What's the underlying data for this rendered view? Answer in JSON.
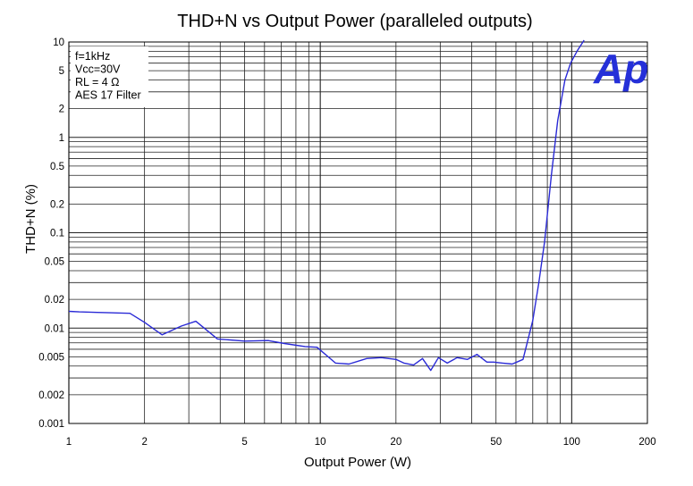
{
  "chart_data": {
    "type": "line",
    "title": "THD+N vs Output Power (paralleled outputs)",
    "xlabel": "Output Power (W)",
    "ylabel": "THD+N (%)",
    "xscale": "log",
    "yscale": "log",
    "xlim": [
      1,
      200
    ],
    "ylim": [
      0.001,
      10
    ],
    "grid": true,
    "x_tick_labels": [
      {
        "value": 1,
        "label": "1"
      },
      {
        "value": 2,
        "label": "2"
      },
      {
        "value": 5,
        "label": "5"
      },
      {
        "value": 10,
        "label": "10"
      },
      {
        "value": 20,
        "label": "20"
      },
      {
        "value": 50,
        "label": "50"
      },
      {
        "value": 100,
        "label": "100"
      },
      {
        "value": 200,
        "label": "200"
      }
    ],
    "y_tick_labels": [
      {
        "value": 0.001,
        "label": "0.001"
      },
      {
        "value": 0.002,
        "label": "0.002"
      },
      {
        "value": 0.005,
        "label": "0.005"
      },
      {
        "value": 0.01,
        "label": "0.01"
      },
      {
        "value": 0.02,
        "label": "0.02"
      },
      {
        "value": 0.05,
        "label": "0.05"
      },
      {
        "value": 0.1,
        "label": "0.1"
      },
      {
        "value": 0.2,
        "label": "0.2"
      },
      {
        "value": 0.5,
        "label": "0.5"
      },
      {
        "value": 1,
        "label": "1"
      },
      {
        "value": 2,
        "label": "2"
      },
      {
        "value": 5,
        "label": "5"
      },
      {
        "value": 10,
        "label": "10"
      }
    ],
    "annotations": [
      "f=1kHz",
      "Vcc=30V",
      "RL = 4 Ω",
      "AES 17 Filter"
    ],
    "logo_text": "Ap",
    "series": [
      {
        "color": "#2a2ad6",
        "x": [
          1.0,
          1.1,
          1.3,
          1.75,
          2.0,
          2.35,
          2.8,
          3.2,
          3.9,
          5.0,
          6.2,
          7.2,
          8.7,
          9.7,
          11.5,
          13.0,
          15.3,
          17.5,
          20.0,
          21.5,
          23.5,
          25.5,
          27.5,
          29.5,
          32.0,
          35.0,
          38.5,
          42.0,
          46.0,
          49.0,
          53.0,
          58.0,
          64.0,
          70.0,
          74.0,
          78.0,
          83.0,
          88.0,
          94.0,
          99.0,
          105.0,
          112.0
        ],
        "y": [
          0.015,
          0.0148,
          0.0146,
          0.0143,
          0.0115,
          0.0085,
          0.0105,
          0.0118,
          0.0077,
          0.0073,
          0.0074,
          0.0069,
          0.0064,
          0.0063,
          0.0043,
          0.0042,
          0.0048,
          0.0049,
          0.0047,
          0.0043,
          0.0041,
          0.0048,
          0.0036,
          0.0049,
          0.0043,
          0.0049,
          0.0047,
          0.0053,
          0.0044,
          0.0044,
          0.0043,
          0.0042,
          0.0047,
          0.012,
          0.03,
          0.08,
          0.4,
          1.5,
          4.0,
          6.0,
          8.0,
          10.5
        ]
      }
    ]
  }
}
